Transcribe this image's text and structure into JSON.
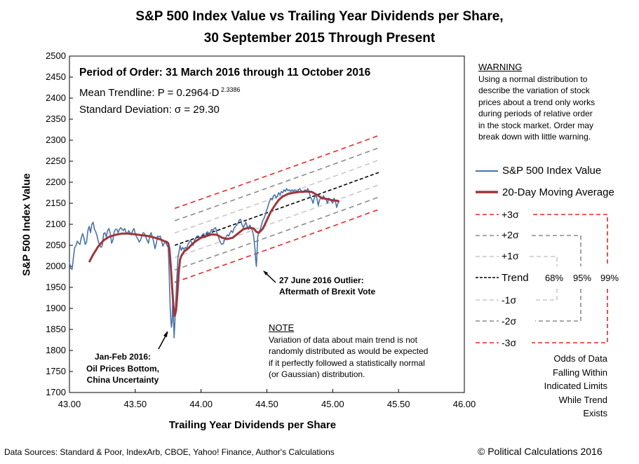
{
  "chart_data": {
    "type": "line",
    "title": "S&P 500 Index Value vs Trailing Year Dividends per Share,",
    "subtitle": "30 September 2015 Through Present",
    "xlabel": "Trailing Year Dividends per Share",
    "ylabel": "S&P 500 Index Value",
    "xlim": [
      43.0,
      46.0
    ],
    "ylim": [
      1700,
      2500
    ],
    "x_ticks": [
      "43.00",
      "43.50",
      "44.00",
      "44.50",
      "45.00",
      "45.50",
      "46.00"
    ],
    "y_ticks": [
      "1700",
      "1750",
      "1800",
      "1850",
      "1900",
      "1950",
      "2000",
      "2050",
      "2100",
      "2150",
      "2200",
      "2250",
      "2300",
      "2350",
      "2400",
      "2450",
      "2500"
    ],
    "trend": {
      "coef": 0.2964,
      "exponent": 2.3386,
      "sigma": 29.3,
      "x_start": 43.8,
      "x_end": 45.35
    },
    "series": [
      {
        "name": "S&P 500 Index Value",
        "color": "#4a72a8",
        "points": [
          [
            43.0,
            2010
          ],
          [
            43.01,
            1995
          ],
          [
            43.02,
            1993
          ],
          [
            43.03,
            2020
          ],
          [
            43.04,
            2045
          ],
          [
            43.05,
            2050
          ],
          [
            43.06,
            2060
          ],
          [
            43.07,
            2055
          ],
          [
            43.08,
            2052
          ],
          [
            43.09,
            2068
          ],
          [
            43.1,
            2078
          ],
          [
            43.11,
            2068
          ],
          [
            43.12,
            2052
          ],
          [
            43.13,
            2058
          ],
          [
            43.14,
            2085
          ],
          [
            43.15,
            2095
          ],
          [
            43.16,
            2080
          ],
          [
            43.17,
            2100
          ],
          [
            43.18,
            2105
          ],
          [
            43.19,
            2088
          ],
          [
            43.2,
            2082
          ],
          [
            43.21,
            2072
          ],
          [
            43.22,
            2058
          ],
          [
            43.23,
            2050
          ],
          [
            43.24,
            2045
          ],
          [
            43.25,
            2050
          ],
          [
            43.26,
            2078
          ],
          [
            43.27,
            2080
          ],
          [
            43.28,
            2070
          ],
          [
            43.29,
            2085
          ],
          [
            43.3,
            2090
          ],
          [
            43.31,
            2078
          ],
          [
            43.32,
            2055
          ],
          [
            43.33,
            2062
          ],
          [
            43.34,
            2082
          ],
          [
            43.35,
            2088
          ],
          [
            43.36,
            2088
          ],
          [
            43.37,
            2080
          ],
          [
            43.38,
            2088
          ],
          [
            43.39,
            2092
          ],
          [
            43.4,
            2088
          ],
          [
            43.41,
            2085
          ],
          [
            43.42,
            2090
          ],
          [
            43.43,
            2080
          ],
          [
            43.44,
            2078
          ],
          [
            43.45,
            2085
          ],
          [
            43.46,
            2080
          ],
          [
            43.47,
            2075
          ],
          [
            43.48,
            2085
          ],
          [
            43.49,
            2090
          ],
          [
            43.5,
            2078
          ],
          [
            43.51,
            2070
          ],
          [
            43.52,
            2065
          ],
          [
            43.53,
            2058
          ],
          [
            43.54,
            2062
          ],
          [
            43.55,
            2072
          ],
          [
            43.56,
            2080
          ],
          [
            43.57,
            2078
          ],
          [
            43.58,
            2070
          ],
          [
            43.59,
            2062
          ],
          [
            43.6,
            2055
          ],
          [
            43.61,
            2072
          ],
          [
            43.62,
            2080
          ],
          [
            43.63,
            2070
          ],
          [
            43.64,
            2058
          ],
          [
            43.65,
            2042
          ],
          [
            43.66,
            2055
          ],
          [
            43.67,
            2072
          ],
          [
            43.68,
            2070
          ],
          [
            43.69,
            2072
          ],
          [
            43.7,
            2060
          ],
          [
            43.71,
            2048
          ],
          [
            43.72,
            2055
          ],
          [
            43.73,
            2058
          ],
          [
            43.74,
            2050
          ],
          [
            43.75,
            2045
          ],
          [
            43.755,
            2010
          ],
          [
            43.76,
            1960
          ],
          [
            43.765,
            1905
          ],
          [
            43.77,
            1875
          ],
          [
            43.775,
            1855
          ],
          [
            43.78,
            1870
          ],
          [
            43.785,
            1920
          ],
          [
            43.79,
            1880
          ],
          [
            43.795,
            1830
          ],
          [
            43.8,
            1860
          ],
          [
            43.805,
            1900
          ],
          [
            43.81,
            1930
          ],
          [
            43.815,
            1965
          ],
          [
            43.82,
            1995
          ],
          [
            43.825,
            2025
          ],
          [
            43.83,
            2030
          ],
          [
            43.84,
            2050
          ],
          [
            43.85,
            2038
          ],
          [
            43.86,
            2045
          ],
          [
            43.87,
            2040
          ],
          [
            43.88,
            2045
          ],
          [
            43.89,
            2042
          ],
          [
            43.9,
            2052
          ],
          [
            43.91,
            2058
          ],
          [
            43.92,
            2062
          ],
          [
            43.93,
            2055
          ],
          [
            43.94,
            2050
          ],
          [
            43.95,
            2062
          ],
          [
            43.96,
            2068
          ],
          [
            43.97,
            2072
          ],
          [
            43.98,
            2072
          ],
          [
            43.99,
            2068
          ],
          [
            44.0,
            2070
          ],
          [
            44.01,
            2075
          ],
          [
            44.02,
            2078
          ],
          [
            44.03,
            2068
          ],
          [
            44.04,
            2080
          ],
          [
            44.05,
            2082
          ],
          [
            44.06,
            2075
          ],
          [
            44.07,
            2080
          ],
          [
            44.08,
            2088
          ],
          [
            44.09,
            2085
          ],
          [
            44.1,
            2090
          ],
          [
            44.11,
            2092
          ],
          [
            44.12,
            2080
          ],
          [
            44.13,
            2072
          ],
          [
            44.14,
            2062
          ],
          [
            44.15,
            2055
          ],
          [
            44.16,
            2052
          ],
          [
            44.17,
            2055
          ],
          [
            44.18,
            2065
          ],
          [
            44.19,
            2070
          ],
          [
            44.2,
            2075
          ],
          [
            44.21,
            2072
          ],
          [
            44.22,
            2080
          ],
          [
            44.23,
            2085
          ],
          [
            44.24,
            2080
          ],
          [
            44.25,
            2090
          ],
          [
            44.26,
            2095
          ],
          [
            44.27,
            2098
          ],
          [
            44.28,
            2102
          ],
          [
            44.29,
            2110
          ],
          [
            44.3,
            2112
          ],
          [
            44.31,
            2100
          ],
          [
            44.32,
            2092
          ],
          [
            44.33,
            2098
          ],
          [
            44.34,
            2105
          ],
          [
            44.35,
            2095
          ],
          [
            44.36,
            2088
          ],
          [
            44.37,
            2098
          ],
          [
            44.38,
            2092
          ],
          [
            44.39,
            2085
          ],
          [
            44.4,
            2070
          ],
          [
            44.41,
            2040
          ],
          [
            44.415,
            2015
          ],
          [
            44.42,
            2000
          ],
          [
            44.425,
            2030
          ],
          [
            44.43,
            2070
          ],
          [
            44.44,
            2082
          ],
          [
            44.45,
            2088
          ],
          [
            44.46,
            2100
          ],
          [
            44.47,
            2110
          ],
          [
            44.48,
            2115
          ],
          [
            44.49,
            2125
          ],
          [
            44.5,
            2135
          ],
          [
            44.51,
            2145
          ],
          [
            44.52,
            2155
          ],
          [
            44.53,
            2162
          ],
          [
            44.54,
            2158
          ],
          [
            44.55,
            2168
          ],
          [
            44.56,
            2170
          ],
          [
            44.57,
            2162
          ],
          [
            44.58,
            2168
          ],
          [
            44.59,
            2175
          ],
          [
            44.6,
            2170
          ],
          [
            44.61,
            2178
          ],
          [
            44.62,
            2175
          ],
          [
            44.63,
            2182
          ],
          [
            44.64,
            2178
          ],
          [
            44.65,
            2185
          ],
          [
            44.66,
            2180
          ],
          [
            44.67,
            2182
          ],
          [
            44.68,
            2178
          ],
          [
            44.69,
            2182
          ],
          [
            44.7,
            2178
          ],
          [
            44.71,
            2182
          ],
          [
            44.72,
            2180
          ],
          [
            44.73,
            2178
          ],
          [
            44.74,
            2182
          ],
          [
            44.75,
            2185
          ],
          [
            44.76,
            2180
          ],
          [
            44.77,
            2175
          ],
          [
            44.78,
            2178
          ],
          [
            44.79,
            2182
          ],
          [
            44.8,
            2178
          ],
          [
            44.81,
            2185
          ],
          [
            44.82,
            2178
          ],
          [
            44.83,
            2165
          ],
          [
            44.84,
            2160
          ],
          [
            44.85,
            2150
          ],
          [
            44.86,
            2162
          ],
          [
            44.87,
            2170
          ],
          [
            44.88,
            2162
          ],
          [
            44.89,
            2145
          ],
          [
            44.9,
            2158
          ],
          [
            44.91,
            2162
          ],
          [
            44.92,
            2160
          ],
          [
            44.93,
            2168
          ],
          [
            44.94,
            2162
          ],
          [
            44.95,
            2158
          ],
          [
            44.96,
            2150
          ],
          [
            44.97,
            2162
          ],
          [
            44.98,
            2158
          ],
          [
            44.99,
            2155
          ],
          [
            45.0,
            2150
          ],
          [
            45.01,
            2162
          ],
          [
            45.02,
            2155
          ],
          [
            45.03,
            2140
          ],
          [
            45.04,
            2150
          ],
          [
            45.05,
            2155
          ]
        ]
      },
      {
        "name": "20-Day Moving Average",
        "color": "#a0353a",
        "points": [
          [
            43.15,
            2010
          ],
          [
            43.18,
            2028
          ],
          [
            43.22,
            2048
          ],
          [
            43.26,
            2062
          ],
          [
            43.3,
            2070
          ],
          [
            43.35,
            2075
          ],
          [
            43.4,
            2078
          ],
          [
            43.45,
            2078
          ],
          [
            43.5,
            2076
          ],
          [
            43.55,
            2074
          ],
          [
            43.6,
            2072
          ],
          [
            43.65,
            2068
          ],
          [
            43.7,
            2063
          ],
          [
            43.72,
            2060
          ],
          [
            43.74,
            2058
          ],
          [
            43.75,
            2055
          ],
          [
            43.76,
            2040
          ],
          [
            43.77,
            2000
          ],
          [
            43.78,
            1950
          ],
          [
            43.79,
            1905
          ],
          [
            43.8,
            1882
          ],
          [
            43.81,
            1895
          ],
          [
            43.82,
            1935
          ],
          [
            43.83,
            1985
          ],
          [
            43.84,
            2015
          ],
          [
            43.85,
            2025
          ],
          [
            43.87,
            2035
          ],
          [
            43.9,
            2042
          ],
          [
            43.93,
            2052
          ],
          [
            43.96,
            2060
          ],
          [
            44.0,
            2068
          ],
          [
            44.04,
            2072
          ],
          [
            44.08,
            2076
          ],
          [
            44.12,
            2075
          ],
          [
            44.16,
            2068
          ],
          [
            44.2,
            2065
          ],
          [
            44.24,
            2068
          ],
          [
            44.28,
            2078
          ],
          [
            44.32,
            2088
          ],
          [
            44.36,
            2092
          ],
          [
            44.4,
            2090
          ],
          [
            44.42,
            2082
          ],
          [
            44.44,
            2080
          ],
          [
            44.47,
            2090
          ],
          [
            44.5,
            2110
          ],
          [
            44.53,
            2130
          ],
          [
            44.56,
            2145
          ],
          [
            44.59,
            2158
          ],
          [
            44.62,
            2166
          ],
          [
            44.66,
            2172
          ],
          [
            44.7,
            2175
          ],
          [
            44.75,
            2177
          ],
          [
            44.8,
            2178
          ],
          [
            44.84,
            2177
          ],
          [
            44.88,
            2170
          ],
          [
            44.92,
            2162
          ],
          [
            44.96,
            2160
          ],
          [
            45.0,
            2157
          ],
          [
            45.05,
            2155
          ]
        ]
      }
    ],
    "bands": [
      {
        "label": "+3σ",
        "k": 3,
        "color": "#e8262a"
      },
      {
        "label": "+2σ",
        "k": 2,
        "color": "#8c8c8c"
      },
      {
        "label": "+1σ",
        "k": 1,
        "color": "#c8c8c8"
      },
      {
        "label": "Trend",
        "k": 0,
        "color": "#000000"
      },
      {
        "label": "-1σ",
        "k": -1,
        "color": "#c8c8c8"
      },
      {
        "label": "-2σ",
        "k": -2,
        "color": "#8c8c8c"
      },
      {
        "label": "-3σ",
        "k": -3,
        "color": "#e8262a"
      }
    ],
    "odds": [
      "68%",
      "95%",
      "99%"
    ],
    "annotations": {
      "jan_feb": [
        "Jan-Feb 2016:",
        "Oil Prices Bottom,",
        "China Uncertainty"
      ],
      "brexit": [
        "27 June 2016  Outlier:",
        "Aftermath of Brexit Vote"
      ]
    }
  },
  "period": {
    "line1": "Period of Order: 31 March 2016 through 11 October 2016",
    "line2_prefix": "Mean Trendline: P = 0.2964∙D",
    "line2_exp": " 2.3386",
    "line3": "Standard Deviation: σ = 29.30"
  },
  "warning": {
    "heading": "WARNING",
    "lines": [
      "Using a  normal distribution to",
      "describe the variation of stock",
      "prices about a trend only works",
      "during periods of relative order",
      "in the stock market.  Order may",
      "break down with little warning."
    ]
  },
  "note": {
    "heading": "NOTE",
    "lines": [
      "Variation of data about main trend is not",
      "randomly distributed as would be expected",
      "if  it perfectly followed a statistically normal",
      "(or Gaussian) distribution."
    ]
  },
  "legend": {
    "sp500": "S&P 500 Index Value",
    "ma20": "20-Day Moving Average"
  },
  "odds_caption": [
    "Odds of Data",
    "Falling Within",
    "Indicated Limits",
    "While Trend",
    "Exists"
  ],
  "footer": {
    "sources": "Data Sources: Standard & Poor, IndexArb, CBOE, Yahoo! Finance, Author's Calculations",
    "copyright": "© Political Calculations 2016"
  }
}
